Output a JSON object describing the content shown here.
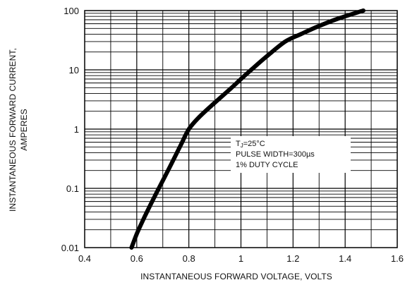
{
  "chart_data": {
    "type": "line",
    "xlabel": "INSTANTANEOUS FORWARD VOLTAGE, VOLTS",
    "ylabel_line1": "INSTANTANEOUS FORWARD CURRENT,",
    "ylabel_line2": "AMPERES",
    "xlim": [
      0.4,
      1.6
    ],
    "ylim": [
      0.01,
      100
    ],
    "yscale": "log",
    "grid": true,
    "x_ticks": [
      "0.4",
      "0.6",
      "0.8",
      "1",
      "1.2",
      "1.4",
      "1.6"
    ],
    "y_ticks": [
      "0.01",
      "0.1",
      "1",
      "10",
      "100"
    ],
    "series": [
      {
        "x": [
          0.58,
          0.6,
          0.63,
          0.67,
          0.72,
          0.77,
          0.8,
          0.84,
          0.9,
          0.96,
          1.0,
          1.05,
          1.1,
          1.17,
          1.23,
          1.3,
          1.38,
          1.47
        ],
        "y": [
          0.01,
          0.017,
          0.033,
          0.075,
          0.2,
          0.55,
          1.0,
          1.6,
          2.8,
          4.8,
          7.0,
          11,
          17,
          30,
          40,
          55,
          75,
          100
        ]
      }
    ],
    "annotation": {
      "line1_main": "T",
      "line1_sub": "J",
      "line1_rest": "=25°C",
      "line2": "PULSE WIDTH=300µs",
      "line3": "1% DUTY CYCLE"
    },
    "colors": {
      "line": "#000000",
      "grid": "#000000"
    }
  }
}
